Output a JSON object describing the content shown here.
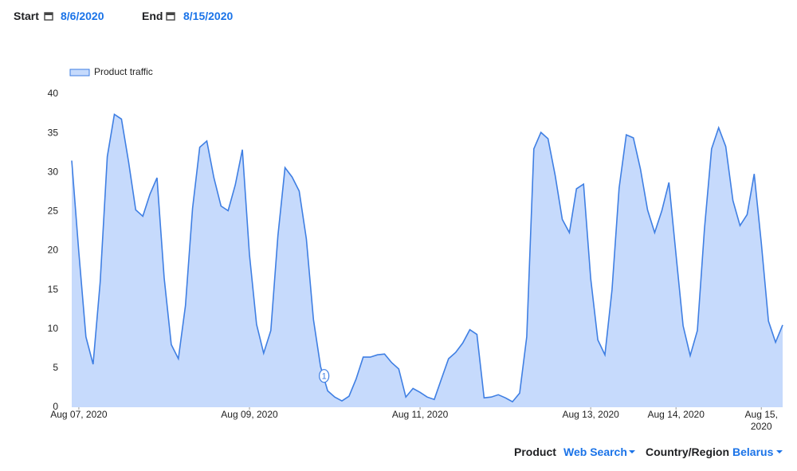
{
  "header": {
    "start_label": "Start",
    "start_date": "8/6/2020",
    "end_label": "End",
    "end_date": "8/15/2020"
  },
  "chart_data": {
    "type": "area",
    "series": [
      {
        "name": "Product traffic",
        "color": "#3f7fe3",
        "fill": "#c6dafc",
        "x": [
          -2,
          0,
          2,
          4,
          6,
          8,
          10,
          12,
          14,
          16,
          18,
          20,
          22,
          24,
          26,
          28,
          30,
          32,
          34,
          36,
          38,
          40,
          42,
          44,
          46,
          48,
          50,
          52,
          54,
          56,
          58,
          60,
          62,
          64,
          66,
          68,
          70,
          72,
          74,
          76,
          78,
          80,
          82,
          84,
          86,
          88,
          90,
          92,
          94,
          96,
          98,
          100,
          102,
          104,
          106,
          108,
          110,
          112,
          114,
          116,
          118,
          120,
          122,
          124,
          126,
          128,
          130,
          132,
          134,
          136,
          138,
          140,
          142,
          144,
          146,
          148,
          150,
          152,
          154,
          156,
          158,
          160,
          162,
          164,
          166,
          168,
          170,
          172,
          174,
          176,
          178,
          180,
          182,
          184,
          186,
          188,
          190,
          192,
          194,
          196,
          198
        ],
        "values": [
          31.5,
          19.8,
          9,
          5.5,
          16,
          32,
          37.4,
          36.8,
          31.3,
          25.2,
          24.4,
          27.2,
          29.3,
          16.5,
          8,
          6.2,
          13,
          25.4,
          33.2,
          34,
          29.3,
          25.7,
          25.1,
          28.4,
          32.9,
          19.5,
          10.6,
          6.9,
          9.8,
          21.9,
          30.6,
          29.4,
          27.6,
          21.5,
          11.2,
          5.2,
          2.1,
          1.3,
          0.8,
          1.4,
          3.6,
          6.4,
          6.4,
          6.7,
          6.8,
          5.7,
          4.9,
          1.3,
          2.4,
          1.9,
          1.3,
          1,
          3.6,
          6.2,
          7,
          8.2,
          9.9,
          9.3,
          1.2,
          1.3,
          1.6,
          1.2,
          0.7,
          1.8,
          9,
          33,
          35.1,
          34.3,
          29.6,
          24,
          22.3,
          27.9,
          28.5,
          16.4,
          8.6,
          6.7,
          15,
          28,
          34.8,
          34.4,
          30.4,
          25.2,
          22.3,
          25.1,
          28.7,
          19.5,
          10.4,
          6.6,
          9.8,
          22.8,
          33,
          35.7,
          33.3,
          26.4,
          23.2,
          24.6,
          29.8,
          21,
          11,
          8.3,
          10.5
        ]
      }
    ],
    "xlim": [
      -2,
      198
    ],
    "ylim": [
      0,
      40
    ],
    "yticks": [
      0,
      5,
      10,
      15,
      20,
      25,
      30,
      35,
      40
    ],
    "xticks": [
      {
        "value": 0,
        "label": "Aug 07, 2020"
      },
      {
        "value": 48,
        "label": "Aug 09, 2020"
      },
      {
        "value": 96,
        "label": "Aug 11, 2020"
      },
      {
        "value": 144,
        "label": "Aug 13, 2020"
      },
      {
        "value": 168,
        "label": "Aug 14, 2020"
      },
      {
        "value": 192,
        "label": "Aug 15, 2020"
      }
    ],
    "annotations": [
      {
        "label": "1",
        "x": 69,
        "y": 4
      }
    ],
    "grid": false,
    "legend": "top-left"
  },
  "filters": {
    "product_label": "Product",
    "product": "Web Search",
    "region_label": "Country/Region",
    "region": "Belarus"
  }
}
